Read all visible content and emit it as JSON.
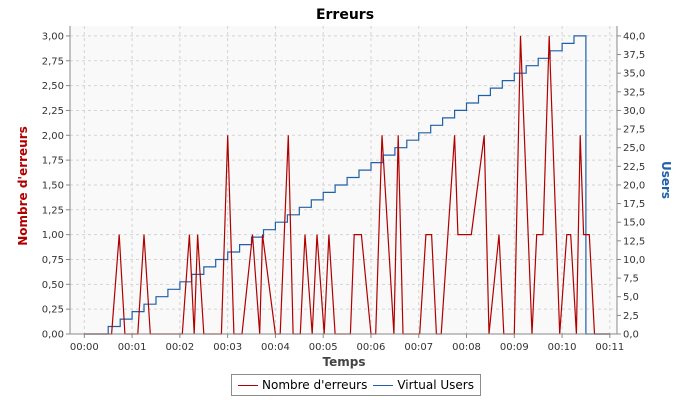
{
  "chart_data": {
    "type": "line",
    "title": "Erreurs",
    "xlabel": "Temps",
    "ylabel": "Nombre d'erreurs",
    "y2label": "Users",
    "grid": true,
    "legend_position": "bottom",
    "x_unit": "minutes",
    "xlim": [
      -0.3,
      11.15
    ],
    "ylim": [
      0,
      3.1
    ],
    "y2lim": [
      0,
      41.33
    ],
    "x_ticks": [
      "00:00",
      "00:01",
      "00:02",
      "00:03",
      "00:04",
      "00:05",
      "00:06",
      "00:07",
      "00:08",
      "00:09",
      "00:10",
      "00:11"
    ],
    "y_ticks": [
      "0,00",
      "0,25",
      "0,50",
      "0,75",
      "1,00",
      "1,25",
      "1,50",
      "1,75",
      "2,00",
      "2,25",
      "2,50",
      "2,75",
      "3,00"
    ],
    "y2_ticks": [
      "0,0",
      "2,5",
      "5,0",
      "7,5",
      "10,0",
      "12,5",
      "15,0",
      "17,5",
      "20,0",
      "22,5",
      "25,0",
      "27,5",
      "30,0",
      "32,5",
      "35,0",
      "37,5",
      "40,0"
    ],
    "series": [
      {
        "name": "Nombre d'erreurs",
        "color": "#b00000",
        "axis": "left",
        "x": [
          0.0,
          0.57,
          0.73,
          0.85,
          1.12,
          1.25,
          1.38,
          2.05,
          2.2,
          2.3,
          2.37,
          2.5,
          2.87,
          3.0,
          3.13,
          3.3,
          3.52,
          3.67,
          3.73,
          4.0,
          4.1,
          4.27,
          4.37,
          4.52,
          4.62,
          4.77,
          4.87,
          5.02,
          5.12,
          5.25,
          5.32,
          5.57,
          5.65,
          5.8,
          6.0,
          6.1,
          6.23,
          6.48,
          6.57,
          6.67,
          7.02,
          7.15,
          7.27,
          7.37,
          7.47,
          7.75,
          7.82,
          8.1,
          8.37,
          8.47,
          8.68,
          8.78,
          9.0,
          9.13,
          9.37,
          9.47,
          9.6,
          9.73,
          9.95,
          10.1,
          10.18,
          10.3,
          10.38,
          10.45,
          10.57,
          10.68,
          11.0
        ],
        "values": [
          0,
          0,
          1,
          0,
          0,
          1,
          0,
          0,
          1,
          0,
          1,
          0,
          0,
          2,
          0,
          0,
          1,
          0,
          1,
          0,
          0,
          2,
          0,
          0,
          1,
          0,
          1,
          0,
          1,
          0,
          0,
          0,
          1,
          1,
          0,
          0,
          2,
          0,
          2,
          0,
          0,
          1,
          1,
          0,
          0,
          2,
          1,
          1,
          2,
          0,
          1,
          0,
          0,
          3,
          0,
          1,
          1,
          3,
          0,
          1,
          1,
          0,
          2,
          1,
          1,
          0,
          0
        ]
      },
      {
        "name": "Virtual Users",
        "color": "#2060a8",
        "axis": "right",
        "x": [
          0.0,
          0.5,
          0.75,
          1.0,
          1.25,
          1.5,
          1.75,
          2.0,
          2.25,
          2.5,
          2.75,
          3.0,
          3.25,
          3.5,
          3.75,
          4.0,
          4.25,
          4.5,
          4.75,
          5.0,
          5.25,
          5.5,
          5.75,
          6.0,
          6.25,
          6.5,
          6.75,
          7.0,
          7.25,
          7.5,
          7.75,
          8.0,
          8.25,
          8.5,
          8.75,
          9.0,
          9.25,
          9.5,
          9.75,
          10.0,
          10.25,
          10.45,
          10.5,
          11.0
        ],
        "values": [
          0,
          1,
          2,
          3,
          4,
          5,
          6,
          7,
          8,
          9,
          10,
          11,
          12,
          13,
          14,
          15,
          16,
          17,
          18,
          19,
          20,
          21,
          22,
          23,
          24,
          25,
          26,
          27,
          28,
          29,
          30,
          31,
          32,
          33,
          34,
          35,
          36,
          37,
          38,
          39,
          40,
          40,
          0,
          0
        ]
      }
    ]
  }
}
